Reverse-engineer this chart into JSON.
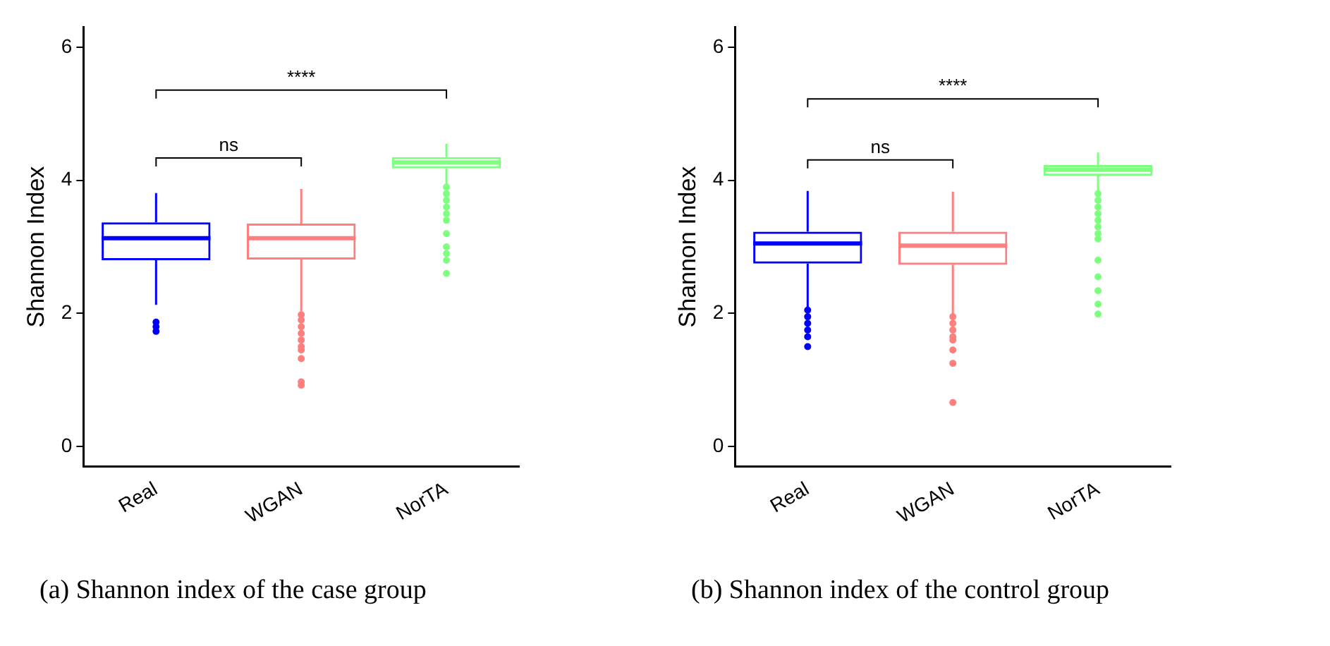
{
  "chart_data": [
    {
      "type": "box",
      "title": "(a) Shannon index of the case group",
      "ylabel": "Shannon Index",
      "categories": [
        "Real",
        "WGAN",
        "NorTA"
      ],
      "colors": [
        "#0000ff",
        "#ff7f7f",
        "#7fff7f"
      ],
      "ylim": [
        -0.3,
        6.3
      ],
      "yticks": [
        0,
        2,
        4,
        6
      ],
      "grid": false,
      "annotations": [
        "ns",
        "****"
      ],
      "boxes": [
        {
          "low": 2.13,
          "q1": 2.8,
          "median": 3.13,
          "q3": 3.37,
          "high": 3.81,
          "outliers": [
            1.87,
            1.8,
            1.73
          ]
        },
        {
          "low": 2.03,
          "q1": 2.81,
          "median": 3.13,
          "q3": 3.35,
          "high": 3.87,
          "outliers": [
            1.98,
            1.9,
            1.8,
            1.7,
            1.6,
            1.5,
            1.45,
            1.32,
            0.97,
            0.92
          ]
        },
        {
          "low": 3.93,
          "q1": 4.18,
          "median": 4.27,
          "q3": 4.35,
          "high": 4.55,
          "outliers": [
            3.9,
            3.8,
            3.7,
            3.6,
            3.5,
            3.4,
            3.2,
            3.0,
            2.9,
            2.8,
            2.6
          ]
        }
      ]
    },
    {
      "type": "box",
      "title": "(b) Shannon index of the control group",
      "ylabel": "Shannon Index",
      "categories": [
        "Real",
        "WGAN",
        "NorTA"
      ],
      "colors": [
        "#0000ff",
        "#ff7f7f",
        "#7fff7f"
      ],
      "ylim": [
        -0.3,
        6.3
      ],
      "yticks": [
        0,
        2,
        4,
        6
      ],
      "grid": false,
      "annotations": [
        "ns",
        "****"
      ],
      "boxes": [
        {
          "low": 2.07,
          "q1": 2.75,
          "median": 3.05,
          "q3": 3.23,
          "high": 3.84,
          "outliers": [
            2.05,
            1.95,
            1.85,
            1.75,
            1.65,
            1.5
          ]
        },
        {
          "low": 1.97,
          "q1": 2.73,
          "median": 3.02,
          "q3": 3.23,
          "high": 3.83,
          "outliers": [
            1.95,
            1.85,
            1.75,
            1.65,
            1.6,
            1.45,
            1.25,
            0.66
          ]
        },
        {
          "low": 3.84,
          "q1": 4.07,
          "median": 4.16,
          "q3": 4.23,
          "high": 4.42,
          "outliers": [
            3.8,
            3.7,
            3.6,
            3.5,
            3.4,
            3.3,
            3.2,
            3.12,
            2.8,
            2.55,
            2.34,
            2.14,
            1.99
          ]
        }
      ]
    }
  ]
}
